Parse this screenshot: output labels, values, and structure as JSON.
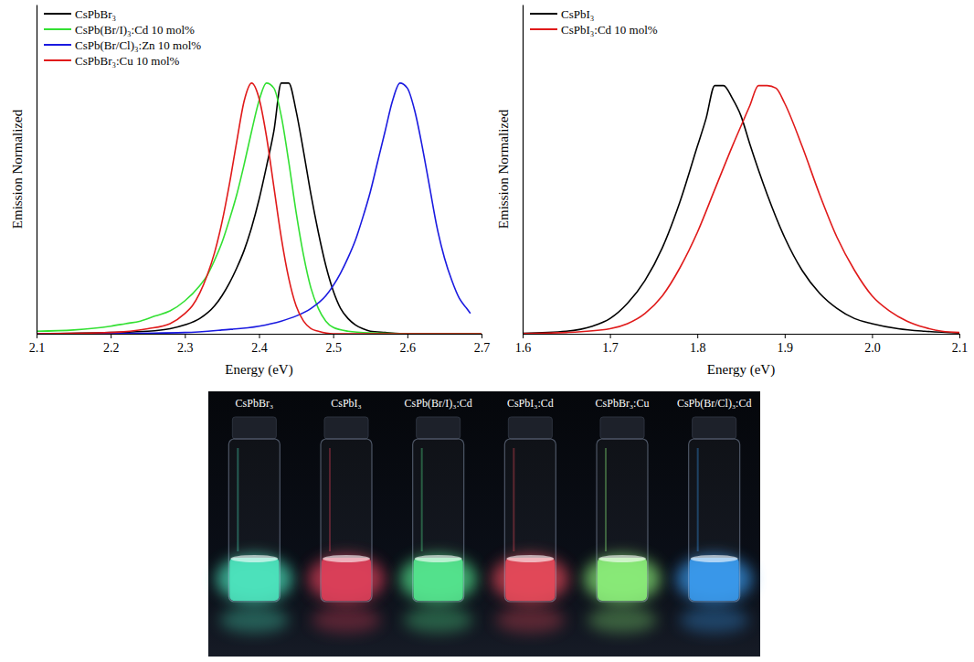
{
  "chart_data": [
    {
      "type": "line",
      "xlabel": "Energy (eV)",
      "ylabel": "Emission Normalized",
      "xlim": [
        2.1,
        2.7
      ],
      "xticks": [
        2.1,
        2.2,
        2.3,
        2.4,
        2.5,
        2.6,
        2.7
      ],
      "ylim": [
        0,
        1.3
      ],
      "tick_labels": "x",
      "legend": "upper left",
      "series": [
        {
          "name": "CsPbBr₃",
          "color": "#000000",
          "x": [
            2.1,
            2.2,
            2.25,
            2.28,
            2.3,
            2.32,
            2.34,
            2.35,
            2.36,
            2.37,
            2.38,
            2.39,
            2.4,
            2.41,
            2.42,
            2.43,
            2.44,
            2.45,
            2.46,
            2.47,
            2.48,
            2.49,
            2.5,
            2.51,
            2.52,
            2.53,
            2.54,
            2.55,
            2.57,
            2.6,
            2.7
          ],
          "values": [
            0,
            0.005,
            0.01,
            0.02,
            0.035,
            0.06,
            0.11,
            0.15,
            0.2,
            0.26,
            0.33,
            0.42,
            0.53,
            0.66,
            0.8,
            0.99,
            0.99,
            0.88,
            0.72,
            0.55,
            0.4,
            0.27,
            0.17,
            0.1,
            0.06,
            0.035,
            0.02,
            0.01,
            0.005,
            0,
            0
          ]
        },
        {
          "name": "CsPb(Br/I)₃:Cd 10 mol%",
          "color": "#33e033",
          "x": [
            2.1,
            2.15,
            2.2,
            2.22,
            2.24,
            2.26,
            2.28,
            2.3,
            2.32,
            2.33,
            2.34,
            2.35,
            2.36,
            2.37,
            2.38,
            2.39,
            2.4,
            2.41,
            2.42,
            2.43,
            2.44,
            2.45,
            2.46,
            2.47,
            2.48,
            2.49,
            2.5,
            2.52,
            2.55,
            2.6,
            2.7
          ],
          "values": [
            0.01,
            0.015,
            0.03,
            0.04,
            0.05,
            0.07,
            0.09,
            0.13,
            0.19,
            0.23,
            0.29,
            0.36,
            0.45,
            0.55,
            0.67,
            0.8,
            0.92,
            0.99,
            0.97,
            0.86,
            0.68,
            0.48,
            0.31,
            0.18,
            0.1,
            0.05,
            0.025,
            0.01,
            0.003,
            0,
            0
          ]
        },
        {
          "name": "CsPb(Br/Cl)₃:Zn 10 mol%",
          "color": "#1a1ae0",
          "x": [
            2.1,
            2.2,
            2.3,
            2.35,
            2.4,
            2.43,
            2.45,
            2.47,
            2.49,
            2.5,
            2.51,
            2.52,
            2.53,
            2.54,
            2.55,
            2.56,
            2.57,
            2.58,
            2.59,
            2.6,
            2.61,
            2.62,
            2.63,
            2.64,
            2.65,
            2.66,
            2.67,
            2.68,
            2.685
          ],
          "values": [
            0,
            0.001,
            0.005,
            0.015,
            0.03,
            0.05,
            0.07,
            0.1,
            0.15,
            0.19,
            0.24,
            0.3,
            0.37,
            0.46,
            0.56,
            0.68,
            0.8,
            0.92,
            0.99,
            0.97,
            0.88,
            0.74,
            0.58,
            0.42,
            0.3,
            0.21,
            0.14,
            0.1,
            0.08
          ]
        },
        {
          "name": "CsPbBr₃:Cu 10 mol%",
          "color": "#e01a1a",
          "x": [
            2.1,
            2.2,
            2.25,
            2.28,
            2.3,
            2.31,
            2.32,
            2.33,
            2.34,
            2.35,
            2.36,
            2.37,
            2.38,
            2.39,
            2.4,
            2.41,
            2.42,
            2.43,
            2.44,
            2.45,
            2.46,
            2.47,
            2.48,
            2.5,
            2.7
          ],
          "values": [
            0,
            0.005,
            0.02,
            0.04,
            0.08,
            0.11,
            0.16,
            0.23,
            0.32,
            0.44,
            0.59,
            0.76,
            0.92,
            0.99,
            0.93,
            0.78,
            0.58,
            0.38,
            0.22,
            0.11,
            0.05,
            0.02,
            0.01,
            0,
            0
          ]
        }
      ]
    },
    {
      "type": "line",
      "xlabel": "Energy (eV)",
      "ylabel": "Emission Normalized",
      "xlim": [
        1.6,
        2.1
      ],
      "xticks": [
        1.6,
        1.7,
        1.8,
        1.9,
        {
          "value": 2,
          "label": "2.0"
        },
        2.1
      ],
      "ylim": [
        0,
        1.3
      ],
      "tick_labels": "x",
      "legend": "upper left",
      "series": [
        {
          "name": "CsPbI₃",
          "color": "#000000",
          "x": [
            1.6,
            1.65,
            1.68,
            1.7,
            1.72,
            1.74,
            1.76,
            1.78,
            1.8,
            1.81,
            1.82,
            1.83,
            1.84,
            1.85,
            1.86,
            1.88,
            1.9,
            1.92,
            1.94,
            1.96,
            1.98,
            2.0,
            2.03,
            2.06,
            2.1
          ],
          "values": [
            0.002,
            0.01,
            0.03,
            0.06,
            0.12,
            0.21,
            0.34,
            0.52,
            0.74,
            0.85,
            0.98,
            0.98,
            0.93,
            0.86,
            0.75,
            0.55,
            0.38,
            0.25,
            0.16,
            0.1,
            0.06,
            0.04,
            0.02,
            0.01,
            0.003
          ]
        },
        {
          "name": "CsPbI₃:Cd 10 mol%",
          "color": "#e01a1a",
          "x": [
            1.6,
            1.65,
            1.7,
            1.72,
            1.74,
            1.76,
            1.78,
            1.8,
            1.82,
            1.84,
            1.86,
            1.87,
            1.88,
            1.89,
            1.9,
            1.92,
            1.94,
            1.96,
            1.98,
            2.0,
            2.02,
            2.04,
            2.06,
            2.08,
            2.1
          ],
          "values": [
            0.001,
            0.005,
            0.02,
            0.04,
            0.08,
            0.15,
            0.26,
            0.4,
            0.57,
            0.74,
            0.9,
            0.98,
            0.98,
            0.97,
            0.91,
            0.74,
            0.55,
            0.38,
            0.25,
            0.15,
            0.09,
            0.05,
            0.025,
            0.01,
            0.005
          ]
        }
      ]
    },
    {
      "type": "photo",
      "categories": [
        "CsPbBr₃",
        "CsPbI₃",
        "CsPb(Br/I)₃:Cd",
        "CsPbI₃:Cd",
        "CsPbBr₃:Cu",
        "CsPb(Br/Cl)₃:Cd"
      ],
      "colors": [
        "#4de8c0",
        "#e0405a",
        "#55e890",
        "#e84a5a",
        "#8cf07a",
        "#3a9cf0"
      ]
    }
  ]
}
